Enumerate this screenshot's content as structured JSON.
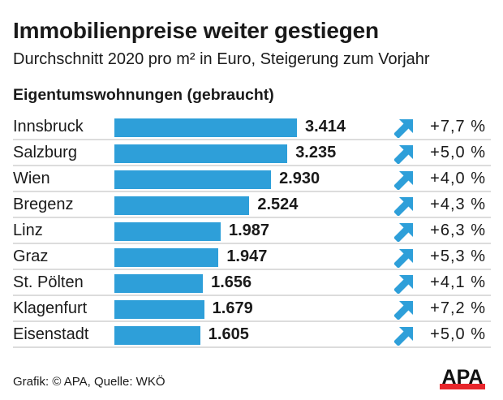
{
  "header": {
    "title": "Immobilienpreise weiter gestiegen",
    "subtitle": "Durchschnitt 2020 pro m² in Euro, Steigerung zum Vorjahr",
    "section": "Eigentumswohnungen (gebraucht)"
  },
  "footer": {
    "credit": "Grafik: © APA, Quelle: WKÖ",
    "logo_text": "APA"
  },
  "colors": {
    "bar": "#2e9fd9",
    "arrow": "#2e9fd9",
    "logo_bar": "#e8262b"
  },
  "chart_data": {
    "type": "bar",
    "orientation": "horizontal",
    "title": "Immobilienpreise weiter gestiegen",
    "subtitle": "Durchschnitt 2020 pro m² in Euro, Steigerung zum Vorjahr",
    "section_label": "Eigentumswohnungen (gebraucht)",
    "categories": [
      "Innsbruck",
      "Salzburg",
      "Wien",
      "Bregenz",
      "Linz",
      "Graz",
      "St. Pölten",
      "Klagenfurt",
      "Eisenstadt"
    ],
    "values": [
      3414,
      3235,
      2930,
      2524,
      1987,
      1947,
      1656,
      1679,
      1605
    ],
    "value_labels": [
      "3.414",
      "3.235",
      "2.930",
      "2.524",
      "1.987",
      "1.947",
      "1.656",
      "1.679",
      "1.605"
    ],
    "change_pct": [
      7.7,
      5.0,
      4.0,
      4.3,
      6.3,
      5.3,
      4.1,
      7.2,
      5.0
    ],
    "change_labels": [
      "+7,7 %",
      "+5,0 %",
      "+4,0 %",
      "+4,3 %",
      "+6,3 %",
      "+5,3 %",
      "+4,1 %",
      "+7,2 %",
      "+5,0 %"
    ],
    "trend_icon": "arrow-up-right-icon",
    "unit": "Euro pro m²",
    "xlim": [
      0,
      3414
    ],
    "grid": false,
    "legend": "none",
    "source": "Grafik: © APA, Quelle: WKÖ"
  }
}
